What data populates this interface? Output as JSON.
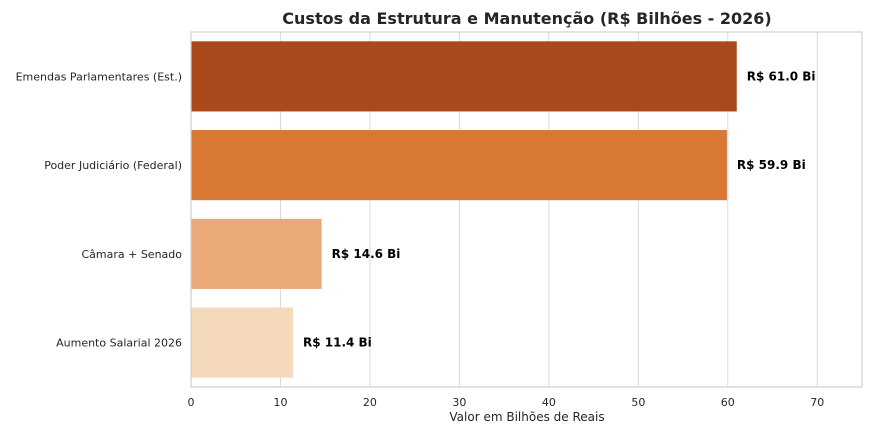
{
  "chart_data": {
    "type": "bar",
    "orientation": "horizontal",
    "title": "Custos da Estrutura e Manutenção (R$ Bilhões - 2026)",
    "xlabel": "Valor em Bilhões de Reais",
    "ylabel": "",
    "categories": [
      "Emendas Parlamentares (Est.)",
      "Poder Judiciário (Federal)",
      "Câmara + Senado",
      "Aumento Salarial 2026"
    ],
    "values": [
      61.0,
      59.9,
      14.6,
      11.4
    ],
    "data_labels": [
      "R$ 61.0 Bi",
      "R$ 59.9 Bi",
      "R$ 14.6 Bi",
      "R$ 11.4 Bi"
    ],
    "colors": [
      "#a8481b",
      "#d97735",
      "#eba978",
      "#f5d9bc"
    ],
    "xlim": [
      0,
      75
    ],
    "xticks": [
      0,
      10,
      20,
      30,
      40,
      50,
      60,
      70
    ],
    "grid": "vertical",
    "legend": "none"
  }
}
